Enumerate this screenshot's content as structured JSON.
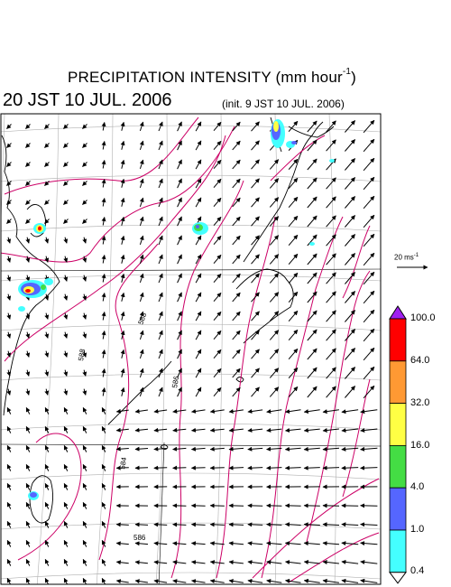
{
  "header": {
    "title_main": "PRECIPITATION INTENSITY (mm hour",
    "title_exp": "-1",
    "title_close": ")",
    "valid_time": "20 JST 10 JUL. 2006",
    "init_time": "(init. 9 JST 10 JUL. 2006)"
  },
  "wind_scale": {
    "label": "20 ms",
    "exp": "-1",
    "ref_speed_ms": 20
  },
  "colorbar": {
    "labels": [
      "100.0",
      "64.0",
      "32.0",
      "16.0",
      "4.0",
      "1.0",
      "0.4"
    ],
    "colors": [
      "#a020f0",
      "#ff0000",
      "#ff9933",
      "#ffff44",
      "#44dd44",
      "#5566ff",
      "#44ffff",
      "#ffffff"
    ],
    "units": "mm hour-1"
  },
  "map": {
    "contour_color": "#cc0066",
    "contour_labels": [
      "588",
      "588",
      "586",
      "584",
      "586"
    ],
    "land_color": "#000000"
  }
}
